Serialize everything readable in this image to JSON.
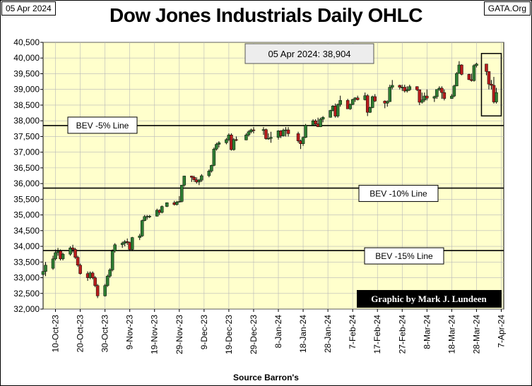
{
  "header": {
    "date": "05 Apr 2024",
    "source": "GATA.Org"
  },
  "chart_data": {
    "type": "candlestick",
    "title": "Dow Jones Industrials Daily OHLC",
    "xlabel": "Source Barron's",
    "ylim": [
      32000,
      40500
    ],
    "yticks": [
      32000,
      32500,
      33000,
      33500,
      34000,
      34500,
      35000,
      35500,
      36000,
      36500,
      37000,
      37500,
      38000,
      38500,
      39000,
      39500,
      40000,
      40500
    ],
    "ytick_labels": [
      "32,000",
      "32,500",
      "33,000",
      "33,500",
      "34,000",
      "34,500",
      "35,000",
      "35,500",
      "36,000",
      "36,500",
      "37,000",
      "37,500",
      "38,000",
      "38,500",
      "39,000",
      "39,500",
      "40,000",
      "40,500"
    ],
    "xlim": [
      "2023-10-05",
      "2024-04-08"
    ],
    "xticks": [
      "2023-10-10",
      "2023-10-20",
      "2023-10-30",
      "2023-11-09",
      "2023-11-19",
      "2023-11-29",
      "2023-12-09",
      "2023-12-19",
      "2023-12-29",
      "2024-01-08",
      "2024-01-18",
      "2024-01-28",
      "2024-02-07",
      "2024-02-17",
      "2024-02-27",
      "2024-03-08",
      "2024-03-18",
      "2024-03-28",
      "2024-04-07"
    ],
    "xtick_labels": [
      "10-Oct-23",
      "20-Oct-23",
      "30-Oct-23",
      "9-Nov-23",
      "19-Nov-23",
      "29-Nov-23",
      "9-Dec-23",
      "19-Dec-23",
      "29-Dec-23",
      "8-Jan-24",
      "18-Jan-24",
      "28-Jan-24",
      "7-Feb-24",
      "17-Feb-24",
      "27-Feb-24",
      "8-Mar-24",
      "18-Mar-24",
      "28-Mar-24",
      "7-Apr-24"
    ],
    "annotation": "05 Apr 2024:  38,904",
    "lines": [
      {
        "label": "BEV -5% Line",
        "value": 37848
      },
      {
        "label": "BEV -10% Line",
        "value": 35855
      },
      {
        "label": "BEV -15% Line",
        "value": 33864
      }
    ],
    "credit": "Graphic by Mark J. Lundeen",
    "highlight": {
      "from": "2024-04-01",
      "to": "2024-04-05"
    },
    "colors": {
      "up": "#2e7d32",
      "down": "#b71c1c",
      "plot_bg": "#ffffcc"
    },
    "ohlc": [
      [
        "2023-10-05",
        33100,
        33300,
        33000,
        33200
      ],
      [
        "2023-10-06",
        33200,
        33500,
        33050,
        33400
      ],
      [
        "2023-10-09",
        33300,
        33700,
        33250,
        33600
      ],
      [
        "2023-10-10",
        33600,
        33900,
        33550,
        33800
      ],
      [
        "2023-10-11",
        33800,
        33950,
        33700,
        33850
      ],
      [
        "2023-10-12",
        33850,
        33900,
        33550,
        33600
      ],
      [
        "2023-10-13",
        33600,
        33800,
        33550,
        33750
      ],
      [
        "2023-10-16",
        33750,
        34000,
        33700,
        33950
      ],
      [
        "2023-10-17",
        33950,
        34050,
        33800,
        33900
      ],
      [
        "2023-10-18",
        33900,
        33950,
        33600,
        33650
      ],
      [
        "2023-10-19",
        33650,
        33700,
        33350,
        33400
      ],
      [
        "2023-10-20",
        33400,
        33450,
        33100,
        33130
      ],
      [
        "2023-10-23",
        33130,
        33200,
        32900,
        33000
      ],
      [
        "2023-10-24",
        33000,
        33200,
        32950,
        33150
      ],
      [
        "2023-10-25",
        33150,
        33200,
        32950,
        33000
      ],
      [
        "2023-10-26",
        33000,
        33050,
        32700,
        32750
      ],
      [
        "2023-10-27",
        32750,
        32800,
        32350,
        32420
      ],
      [
        "2023-10-30",
        32420,
        32800,
        32400,
        32750
      ],
      [
        "2023-10-31",
        32750,
        33100,
        32700,
        33050
      ],
      [
        "2023-11-01",
        33050,
        33300,
        33000,
        33250
      ],
      [
        "2023-11-02",
        33250,
        33900,
        33200,
        33850
      ],
      [
        "2023-11-03",
        33850,
        34100,
        33800,
        34050
      ],
      [
        "2023-11-06",
        34050,
        34150,
        33950,
        34100
      ],
      [
        "2023-11-07",
        34100,
        34200,
        34000,
        34150
      ],
      [
        "2023-11-08",
        34150,
        34250,
        34050,
        34120
      ],
      [
        "2023-11-09",
        34120,
        34150,
        33850,
        33900
      ],
      [
        "2023-11-10",
        33900,
        34300,
        33850,
        34280
      ],
      [
        "2023-11-13",
        34280,
        34400,
        34200,
        34330
      ],
      [
        "2023-11-14",
        34330,
        34850,
        34300,
        34820
      ],
      [
        "2023-11-15",
        34820,
        35000,
        34800,
        34950
      ],
      [
        "2023-11-16",
        34950,
        35000,
        34850,
        34950
      ],
      [
        "2023-11-17",
        34950,
        35000,
        34900,
        34960
      ],
      [
        "2023-11-20",
        34960,
        35200,
        34950,
        35150
      ],
      [
        "2023-11-21",
        35150,
        35180,
        35000,
        35080
      ],
      [
        "2023-11-22",
        35080,
        35300,
        35050,
        35270
      ],
      [
        "2023-11-24",
        35270,
        35400,
        35250,
        35390
      ],
      [
        "2023-11-27",
        35390,
        35450,
        35300,
        35330
      ],
      [
        "2023-11-28",
        35330,
        35450,
        35300,
        35410
      ],
      [
        "2023-11-29",
        35410,
        35600,
        35400,
        35430
      ],
      [
        "2023-11-30",
        35430,
        35950,
        35400,
        35950
      ],
      [
        "2023-12-01",
        35950,
        36250,
        35900,
        36240
      ],
      [
        "2023-12-04",
        36240,
        36250,
        36050,
        36200
      ],
      [
        "2023-12-05",
        36200,
        36250,
        36050,
        36120
      ],
      [
        "2023-12-06",
        36120,
        36200,
        36000,
        36050
      ],
      [
        "2023-12-07",
        36050,
        36150,
        35950,
        36110
      ],
      [
        "2023-12-08",
        36110,
        36300,
        36050,
        36250
      ],
      [
        "2023-12-11",
        36250,
        36450,
        36200,
        36400
      ],
      [
        "2023-12-12",
        36400,
        36600,
        36350,
        36580
      ],
      [
        "2023-12-13",
        36580,
        37150,
        36550,
        37100
      ],
      [
        "2023-12-14",
        37100,
        37300,
        37050,
        37250
      ],
      [
        "2023-12-15",
        37250,
        37350,
        37150,
        37300
      ],
      [
        "2023-12-18",
        37300,
        37450,
        37250,
        37400
      ],
      [
        "2023-12-19",
        37400,
        37600,
        37350,
        37550
      ],
      [
        "2023-12-20",
        37550,
        37600,
        37050,
        37080
      ],
      [
        "2023-12-21",
        37080,
        37450,
        37050,
        37400
      ],
      [
        "2023-12-22",
        37400,
        37500,
        37350,
        37390
      ],
      [
        "2023-12-26",
        37390,
        37600,
        37380,
        37550
      ],
      [
        "2023-12-27",
        37550,
        37700,
        37500,
        37650
      ],
      [
        "2023-12-28",
        37650,
        37750,
        37600,
        37710
      ],
      [
        "2023-12-29",
        37710,
        37800,
        37600,
        37690
      ],
      [
        "2024-01-02",
        37690,
        37800,
        37550,
        37720
      ],
      [
        "2024-01-03",
        37720,
        37750,
        37400,
        37430
      ],
      [
        "2024-01-04",
        37430,
        37600,
        37400,
        37440
      ],
      [
        "2024-01-05",
        37440,
        37650,
        37300,
        37470
      ],
      [
        "2024-01-08",
        37470,
        37700,
        37400,
        37680
      ],
      [
        "2024-01-09",
        37680,
        37700,
        37450,
        37520
      ],
      [
        "2024-01-10",
        37520,
        37750,
        37500,
        37700
      ],
      [
        "2024-01-11",
        37700,
        37800,
        37500,
        37710
      ],
      [
        "2024-01-12",
        37710,
        37800,
        37500,
        37590
      ],
      [
        "2024-01-16",
        37590,
        37650,
        37300,
        37360
      ],
      [
        "2024-01-17",
        37360,
        37400,
        37100,
        37270
      ],
      [
        "2024-01-18",
        37270,
        37500,
        37200,
        37470
      ],
      [
        "2024-01-19",
        37470,
        37900,
        37450,
        37860
      ],
      [
        "2024-01-22",
        37860,
        38050,
        37850,
        38000
      ],
      [
        "2024-01-23",
        38000,
        38050,
        37850,
        37900
      ],
      [
        "2024-01-24",
        37900,
        38100,
        37800,
        37810
      ],
      [
        "2024-01-25",
        37810,
        38100,
        37800,
        38050
      ],
      [
        "2024-01-26",
        38050,
        38150,
        37950,
        38110
      ],
      [
        "2024-01-29",
        38110,
        38350,
        38100,
        38330
      ],
      [
        "2024-01-30",
        38330,
        38500,
        38300,
        38470
      ],
      [
        "2024-01-31",
        38470,
        38550,
        38100,
        38150
      ],
      [
        "2024-02-01",
        38150,
        38550,
        38100,
        38520
      ],
      [
        "2024-02-02",
        38520,
        38800,
        38450,
        38650
      ],
      [
        "2024-02-05",
        38650,
        38700,
        38400,
        38380
      ],
      [
        "2024-02-06",
        38380,
        38550,
        38350,
        38520
      ],
      [
        "2024-02-07",
        38520,
        38700,
        38500,
        38680
      ],
      [
        "2024-02-08",
        38680,
        38750,
        38600,
        38730
      ],
      [
        "2024-02-09",
        38730,
        38800,
        38650,
        38670
      ],
      [
        "2024-02-12",
        38670,
        38900,
        38650,
        38800
      ],
      [
        "2024-02-13",
        38800,
        38850,
        38150,
        38270
      ],
      [
        "2024-02-14",
        38270,
        38450,
        38250,
        38420
      ],
      [
        "2024-02-15",
        38420,
        38800,
        38400,
        38770
      ],
      [
        "2024-02-16",
        38770,
        38850,
        38600,
        38630
      ],
      [
        "2024-02-20",
        38630,
        38650,
        38400,
        38560
      ],
      [
        "2024-02-21",
        38560,
        38650,
        38450,
        38610
      ],
      [
        "2024-02-22",
        38610,
        39150,
        38600,
        39070
      ],
      [
        "2024-02-23",
        39070,
        39300,
        39000,
        39130
      ],
      [
        "2024-02-26",
        39130,
        39150,
        39000,
        39070
      ],
      [
        "2024-02-27",
        39070,
        39150,
        38950,
        39070
      ],
      [
        "2024-02-28",
        39070,
        39150,
        38900,
        38950
      ],
      [
        "2024-02-29",
        38950,
        39100,
        38900,
        38990
      ],
      [
        "2024-03-01",
        38990,
        39150,
        38950,
        39090
      ],
      [
        "2024-03-04",
        39090,
        39100,
        38950,
        38990
      ],
      [
        "2024-03-05",
        38990,
        39000,
        38500,
        38590
      ],
      [
        "2024-03-06",
        38590,
        38900,
        38550,
        38660
      ],
      [
        "2024-03-07",
        38660,
        38900,
        38600,
        38790
      ],
      [
        "2024-03-08",
        38790,
        39000,
        38650,
        38720
      ],
      [
        "2024-03-11",
        38720,
        38800,
        38600,
        38770
      ],
      [
        "2024-03-12",
        38770,
        39000,
        38700,
        39000
      ],
      [
        "2024-03-13",
        39000,
        39100,
        38950,
        39040
      ],
      [
        "2024-03-14",
        39040,
        39100,
        38700,
        38900
      ],
      [
        "2024-03-15",
        38900,
        39000,
        38650,
        38710
      ],
      [
        "2024-03-18",
        38710,
        38850,
        38700,
        38790
      ],
      [
        "2024-03-19",
        38790,
        39150,
        38750,
        39110
      ],
      [
        "2024-03-20",
        39110,
        39550,
        39100,
        39510
      ],
      [
        "2024-03-21",
        39510,
        39900,
        39500,
        39780
      ],
      [
        "2024-03-22",
        39780,
        39800,
        39450,
        39480
      ],
      [
        "2024-03-25",
        39480,
        39500,
        39300,
        39310
      ],
      [
        "2024-03-26",
        39310,
        39500,
        39250,
        39280
      ],
      [
        "2024-03-27",
        39280,
        39800,
        39250,
        39760
      ],
      [
        "2024-03-28",
        39760,
        39850,
        39700,
        39810
      ],
      [
        "2024-04-01",
        39810,
        39800,
        39450,
        39570
      ],
      [
        "2024-04-02",
        39570,
        39550,
        39000,
        39170
      ],
      [
        "2024-04-03",
        39170,
        39300,
        39000,
        39130
      ],
      [
        "2024-04-04",
        39130,
        39400,
        38550,
        38600
      ],
      [
        "2024-04-05",
        38600,
        39050,
        38550,
        38900
      ]
    ]
  }
}
